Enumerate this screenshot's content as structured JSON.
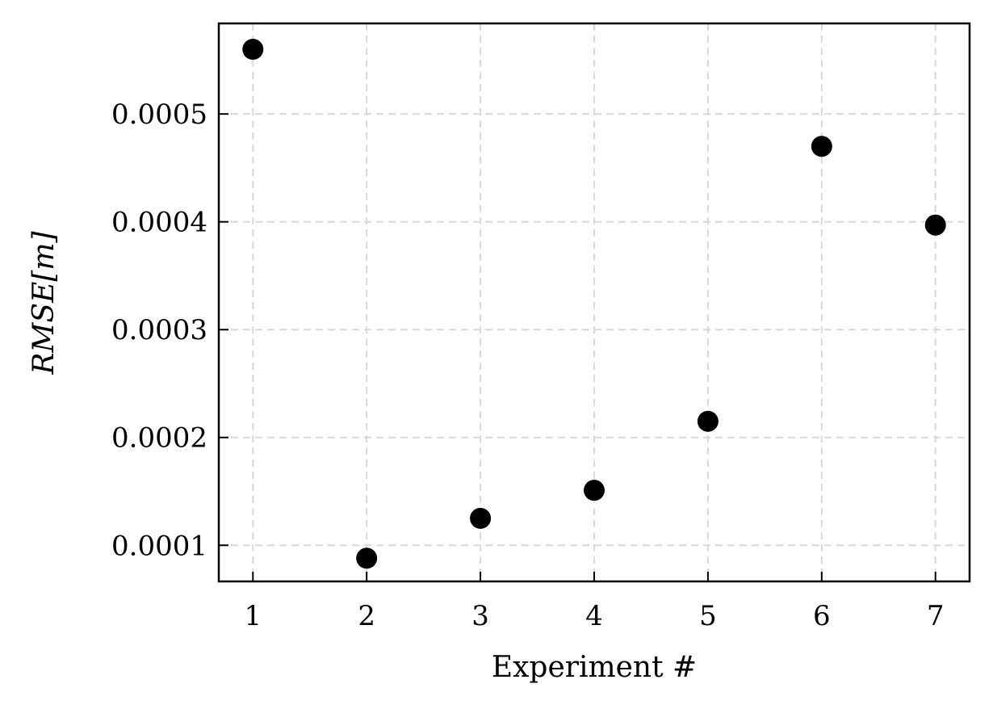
{
  "chart_data": {
    "type": "scatter",
    "title": "",
    "xlabel": "Experiment #",
    "ylabel": "RMSE[m]",
    "x": [
      1,
      2,
      3,
      4,
      5,
      6,
      7
    ],
    "y": [
      0.00056,
      8.8e-05,
      0.000125,
      0.000151,
      0.000215,
      0.00047,
      0.000397
    ],
    "xlim": [
      0.7,
      7.3
    ],
    "ylim": [
      6.65e-05,
      0.000584
    ],
    "xticks": [
      1,
      2,
      3,
      4,
      5,
      6,
      7
    ],
    "xtick_labels": [
      "1",
      "2",
      "3",
      "4",
      "5",
      "6",
      "7"
    ],
    "yticks": [
      0.0001,
      0.0002,
      0.0003,
      0.0004,
      0.0005
    ],
    "ytick_labels": [
      "0.0001",
      "0.0002",
      "0.0003",
      "0.0004",
      "0.0005"
    ],
    "grid": true,
    "grid_style": "dashed",
    "marker_color": "#000000",
    "grid_color": "#d9d9d9",
    "legend": "none"
  }
}
